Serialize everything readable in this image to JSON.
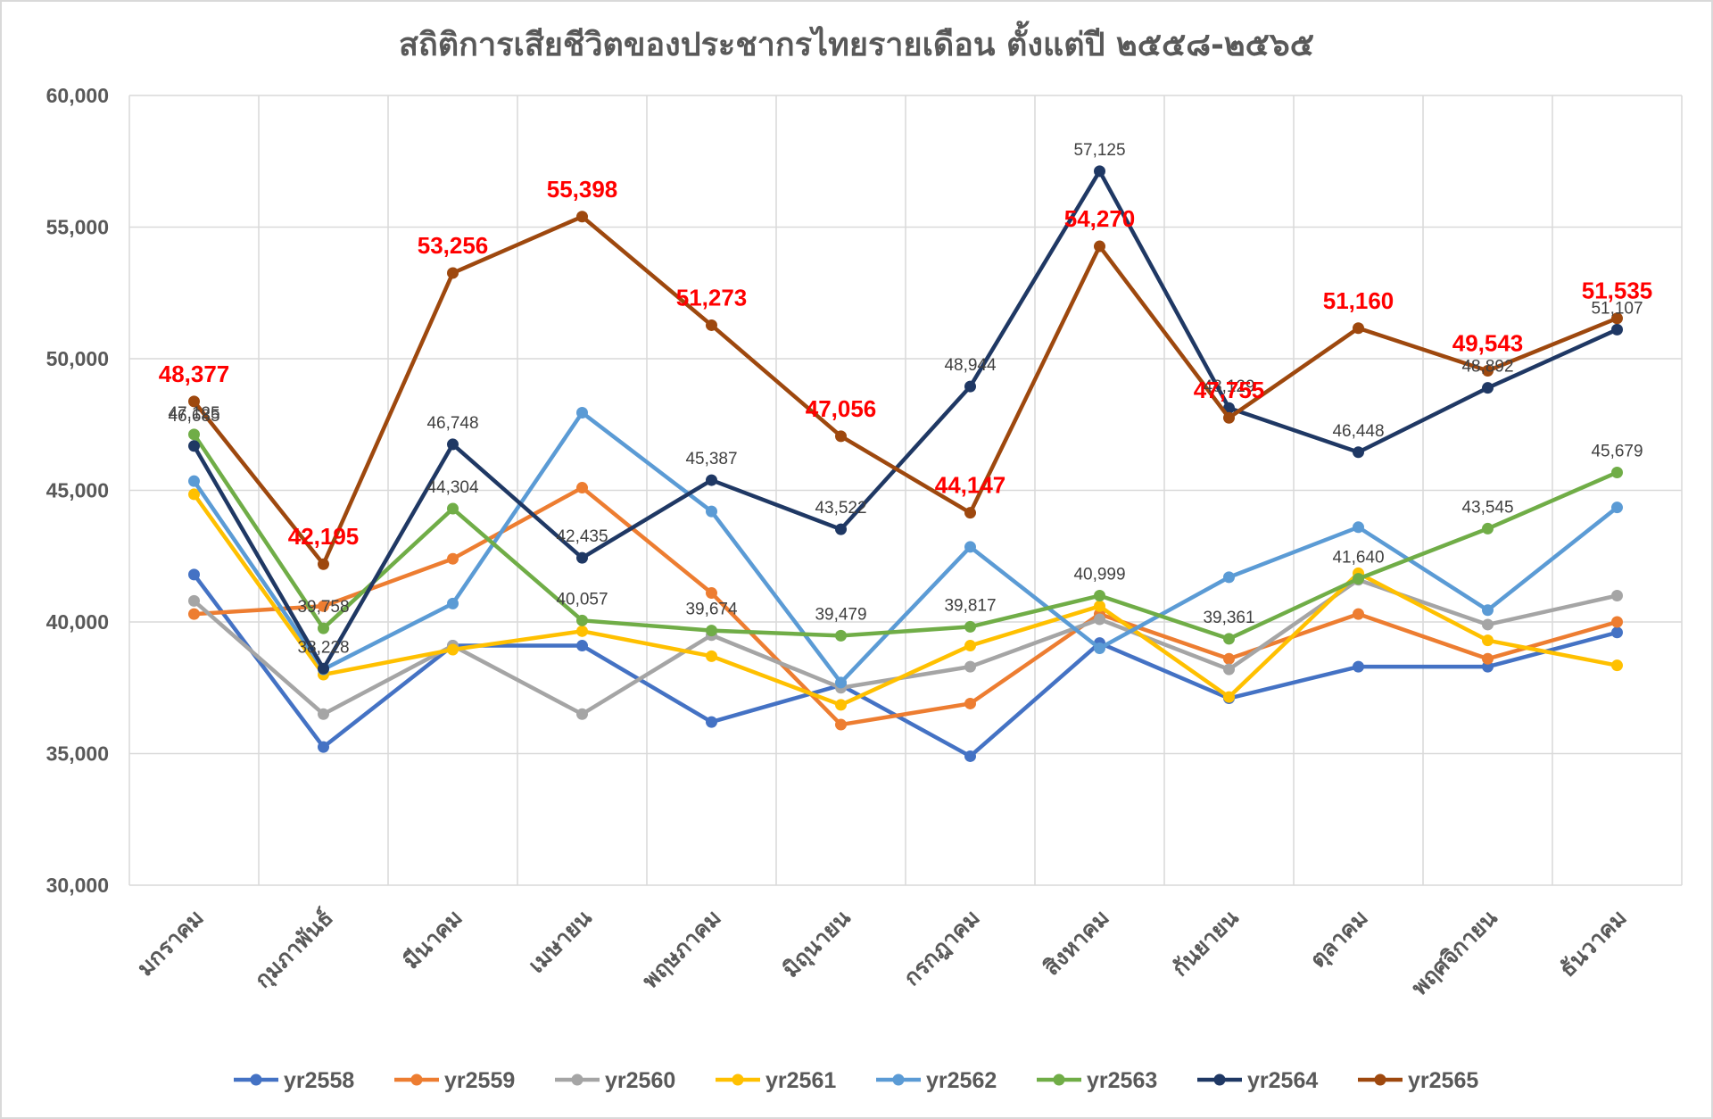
{
  "chart_data": {
    "type": "line",
    "title": "สถิติการเสียชีวิตของประชากรไทยรายเดือน ตั้งแต่ปี ๒๕๕๘-๒๕๖๕",
    "xlabel": "",
    "ylabel": "",
    "ylim": [
      30000,
      60000
    ],
    "yticks": [
      30000,
      35000,
      40000,
      45000,
      50000,
      55000,
      60000
    ],
    "ytick_labels": [
      "30,000",
      "35,000",
      "40,000",
      "45,000",
      "50,000",
      "55,000",
      "60,000"
    ],
    "grid": true,
    "legend_position": "bottom",
    "categories": [
      "มกราคม",
      "กุมภาพันธ์",
      "มีนาคม",
      "เมษายน",
      "พฤษภาคม",
      "มิถุนายน",
      "กรกฎาคม",
      "สิงหาคม",
      "กันยายน",
      "ตุลาคม",
      "พฤศจิกายน",
      "ธันวาคม"
    ],
    "series": [
      {
        "name": "yr2558",
        "color": "#4472c4",
        "values": [
          41800,
          35250,
          39100,
          39100,
          36200,
          37600,
          34900,
          39200,
          37100,
          38300,
          38300,
          39600
        ]
      },
      {
        "name": "yr2559",
        "color": "#ed7d31",
        "values": [
          40300,
          40600,
          42400,
          45100,
          41100,
          36100,
          36900,
          40300,
          38600,
          40300,
          38600,
          40000
        ]
      },
      {
        "name": "yr2560",
        "color": "#a5a5a5",
        "values": [
          40800,
          36500,
          39100,
          36500,
          39500,
          37500,
          38300,
          40100,
          38200,
          41600,
          39900,
          41000
        ]
      },
      {
        "name": "yr2561",
        "color": "#ffc000",
        "values": [
          44850,
          38000,
          38950,
          39650,
          38700,
          36850,
          39100,
          40600,
          37150,
          41850,
          39300,
          38350
        ]
      },
      {
        "name": "yr2562",
        "color": "#5b9bd5",
        "values": [
          45350,
          38200,
          40700,
          47950,
          44200,
          37700,
          42850,
          39000,
          41700,
          43600,
          40450,
          44350
        ]
      },
      {
        "name": "yr2563",
        "color": "#70ad47",
        "values": [
          47125,
          39758,
          44304,
          40057,
          39674,
          39479,
          39817,
          40999,
          39361,
          41640,
          43545,
          45679
        ]
      },
      {
        "name": "yr2564",
        "color": "#1f3864",
        "values": [
          46685,
          38228,
          46748,
          42435,
          45387,
          43522,
          48944,
          57125,
          48129,
          46448,
          48892,
          51107
        ]
      },
      {
        "name": "yr2565",
        "color": "#9e480e",
        "values": [
          48377,
          42195,
          53256,
          55398,
          51273,
          47056,
          44147,
          54270,
          47755,
          51160,
          49543,
          51535
        ]
      }
    ],
    "data_labels": {
      "yr2563": [
        "47,125",
        "39,758",
        "44,304",
        "40,057",
        "39,674",
        "39,479",
        "39,817",
        "40,999",
        "39,361",
        "41,640",
        "43,545",
        "45,679"
      ],
      "yr2564": [
        "46,685",
        "38,228",
        "46,748",
        "42,435",
        "45,387",
        "43,522",
        "48,944",
        "57,125",
        "48,129",
        "46,448",
        "48,892",
        "51,107"
      ],
      "yr2565": [
        "48,377",
        "42,195",
        "53,256",
        "55,398",
        "51,273",
        "47,056",
        "44,147",
        "54,270",
        "47,755",
        "51,160",
        "49,543",
        "51,535"
      ]
    }
  }
}
